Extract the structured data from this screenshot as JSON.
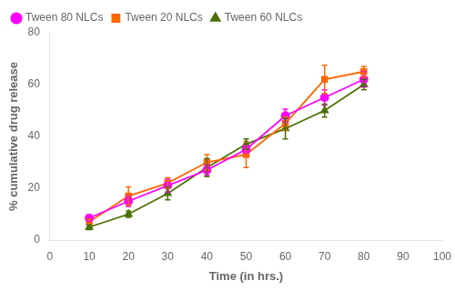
{
  "chart_data": {
    "type": "line",
    "xlabel": "Time (in hrs.)",
    "ylabel": "% cumulative drug release",
    "xlim": [
      0,
      100
    ],
    "ylim": [
      0,
      80
    ],
    "xticks": [
      0,
      10,
      20,
      30,
      40,
      50,
      60,
      70,
      80,
      90,
      100
    ],
    "yticks": [
      0,
      20,
      40,
      60,
      80
    ],
    "x": [
      10,
      20,
      30,
      40,
      50,
      60,
      70,
      80
    ],
    "series": [
      {
        "name": "Tween 80 NLCs",
        "color": "#FF00FF",
        "marker": "circle",
        "values": [
          8.5,
          15,
          21,
          27,
          35,
          48,
          55,
          62
        ],
        "yerr": [
          1.2,
          2.0,
          2.5,
          2.0,
          1.5,
          2.5,
          3.0,
          3.0
        ]
      },
      {
        "name": "Tween 20 NLCs",
        "color": "#FF6600",
        "marker": "square",
        "values": [
          7,
          17,
          22,
          30,
          33,
          45,
          62,
          65
        ],
        "yerr": [
          1.0,
          3.5,
          2.0,
          3.0,
          5.0,
          2.5,
          5.5,
          2.0
        ]
      },
      {
        "name": "Tween 60 NLCs",
        "color": "#4A7000",
        "marker": "triangle",
        "values": [
          5,
          10,
          18,
          28,
          37,
          43,
          50,
          60
        ],
        "yerr": [
          1.0,
          1.2,
          2.5,
          3.5,
          2.0,
          4.0,
          2.5,
          2.0
        ]
      }
    ],
    "grid": false,
    "legend": "upper left"
  }
}
